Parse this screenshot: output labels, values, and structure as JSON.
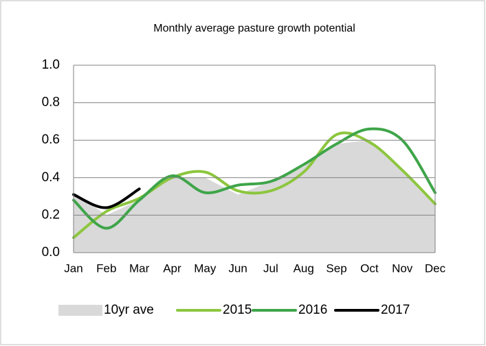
{
  "chart_data": {
    "type": "line",
    "title": "Monthly average pasture growth potential",
    "categories": [
      "Jan",
      "Feb",
      "Mar",
      "Apr",
      "May",
      "Jun",
      "Jul",
      "Aug",
      "Sep",
      "Oct",
      "Nov",
      "Dec"
    ],
    "series": [
      {
        "name": "10yr ave",
        "kind": "area",
        "color": "#d9d9d9",
        "values": [
          0.32,
          0.2,
          0.28,
          0.4,
          0.4,
          0.31,
          0.38,
          0.46,
          0.58,
          0.6,
          0.45,
          0.27
        ]
      },
      {
        "name": "2015",
        "color": "#8dc63f",
        "values": [
          0.08,
          0.22,
          0.29,
          0.4,
          0.43,
          0.33,
          0.33,
          0.43,
          0.63,
          0.59,
          0.44,
          0.26
        ]
      },
      {
        "name": "2016",
        "color": "#3ea549",
        "values": [
          0.28,
          0.13,
          0.28,
          0.41,
          0.32,
          0.36,
          0.38,
          0.47,
          0.58,
          0.66,
          0.6,
          0.32
        ]
      },
      {
        "name": "2017",
        "color": "#000000",
        "values": [
          0.31,
          0.24,
          0.34,
          null,
          null,
          null,
          null,
          null,
          null,
          null,
          null,
          null
        ]
      }
    ],
    "ylim": [
      0,
      1
    ],
    "yticks": [
      {
        "value": 0,
        "label": "0.0"
      },
      {
        "value": 0.2,
        "label": "0.2"
      },
      {
        "value": 0.4,
        "label": "0.4"
      },
      {
        "value": 0.6,
        "label": "0.6"
      },
      {
        "value": 0.8,
        "label": "0.8"
      },
      {
        "value": 1,
        "label": "1.0"
      }
    ],
    "grid": true,
    "legend": "bottom"
  }
}
